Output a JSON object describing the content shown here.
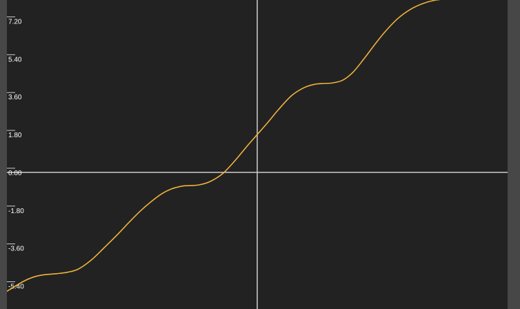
{
  "chart_data": {
    "type": "line",
    "title": "",
    "xlabel": "",
    "ylabel": "",
    "grid": false,
    "xlim": [
      -11.75,
      11.75
    ],
    "ylim": [
      -6.5,
      8.2
    ],
    "y_ticks": [
      7.2,
      5.4,
      3.6,
      1.8,
      0.0,
      -1.8,
      -3.6,
      -5.4
    ],
    "y_tick_labels": [
      "7.20",
      "5.40",
      "3.60",
      "1.80",
      "0.00",
      "-1.80",
      "-3.60",
      "-5.40"
    ],
    "series": [
      {
        "color": "#f0b43c",
        "x": [
          -11.75,
          -11.0,
          -10.5,
          -10.0,
          -9.42,
          -8.9,
          -8.4,
          -7.8,
          -7.2,
          -6.6,
          -6.0,
          -5.5,
          -5.0,
          -4.5,
          -4.0,
          -3.5,
          -3.14,
          -2.7,
          -2.2,
          -1.6,
          -1.0,
          -0.5,
          0.0,
          0.5,
          1.0,
          1.6,
          2.2,
          2.7,
          3.14,
          3.5,
          4.0,
          4.5,
          5.0,
          5.5,
          6.0,
          6.6,
          7.2,
          7.8,
          8.4,
          8.9,
          9.42,
          10.0,
          10.5,
          11.0,
          11.75
        ],
        "y": [
          -5.66,
          -5.2,
          -4.98,
          -4.87,
          -4.82,
          -4.75,
          -4.6,
          -4.18,
          -3.6,
          -3.0,
          -2.36,
          -1.85,
          -1.41,
          -1.03,
          -0.78,
          -0.65,
          -0.63,
          -0.59,
          -0.43,
          -0.04,
          0.61,
          1.22,
          1.8,
          2.38,
          2.99,
          3.64,
          4.03,
          4.19,
          4.23,
          4.25,
          4.38,
          4.77,
          5.39,
          6.06,
          6.69,
          7.32,
          7.76,
          8.04,
          8.2,
          8.24,
          8.26,
          8.3,
          8.4,
          8.56,
          8.97
        ]
      }
    ]
  }
}
